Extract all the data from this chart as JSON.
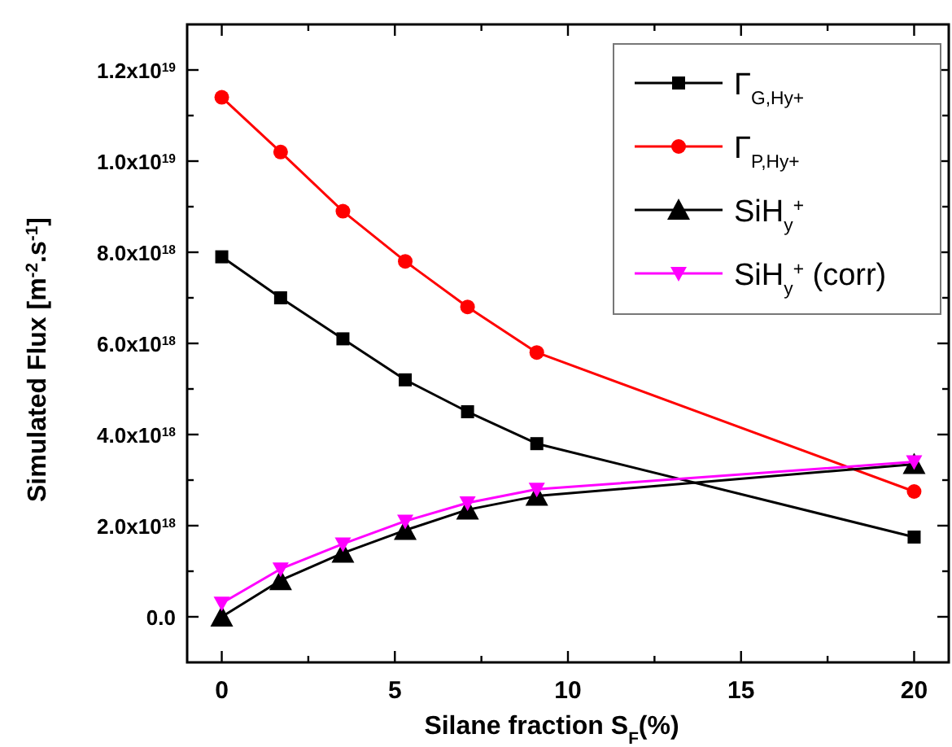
{
  "chart_data": {
    "type": "line",
    "xlabel": "Silane fraction S$_{F}$(%)",
    "ylabel": "Simulated Flux [m$^{-2}$.s$^{-1}$]",
    "x": [
      0,
      1.7,
      3.5,
      5.3,
      7.1,
      9.1,
      20
    ],
    "xlim": [
      -1,
      21
    ],
    "xticks": [
      0,
      {
        "value": 2.5,
        "label": null
      },
      5,
      {
        "value": 7.5,
        "label": null
      },
      10,
      {
        "value": 12.5,
        "label": null
      },
      15,
      {
        "value": 17.5,
        "label": null
      },
      20
    ],
    "ylim": [
      -1e+18,
      1.3e+19
    ],
    "yticks": [
      {
        "value": 0,
        "label": "0.0"
      },
      {
        "value": 1e+18,
        "label": null
      },
      {
        "value": 2e+18,
        "label": "2.0x10$^{18}$"
      },
      {
        "value": 3e+18,
        "label": null
      },
      {
        "value": 4e+18,
        "label": "4.0x10$^{18}$"
      },
      {
        "value": 5e+18,
        "label": null
      },
      {
        "value": 6e+18,
        "label": "6.0x10$^{18}$"
      },
      {
        "value": 7e+18,
        "label": null
      },
      {
        "value": 8e+18,
        "label": "8.0x10$^{18}$"
      },
      {
        "value": 9e+18,
        "label": null
      },
      {
        "value": 1e+19,
        "label": "1.0x10$^{19}$"
      },
      {
        "value": 1.1e+19,
        "label": null
      },
      {
        "value": 1.2e+19,
        "label": "1.2x10$^{19}$"
      }
    ],
    "grid": false,
    "legend": "top right",
    "line_style": "solid",
    "series": [
      {
        "name": "Γ$_{G,Hy+}$",
        "color": "#000000",
        "marker": "square",
        "values": [
          7.9e+18,
          7e+18,
          6.1e+18,
          5.2e+18,
          4.5e+18,
          3.8e+18,
          1.75e+18
        ]
      },
      {
        "name": "Γ$_{P,Hy+}$",
        "color": "#ff0000",
        "marker": "circle",
        "values": [
          1.14e+19,
          1.02e+19,
          8.9e+18,
          7.8e+18,
          6.8e+18,
          5.8e+18,
          2.75e+18
        ]
      },
      {
        "name": "SiH$_{y}$$^{+}$",
        "color": "#000000",
        "marker": "triangle",
        "values": [
          0,
          8e+17,
          1.4e+18,
          1.9e+18,
          2.35e+18,
          2.65e+18,
          3.35e+18
        ]
      },
      {
        "name": "SiH$_{y}$$^{+}$ (corr)",
        "color": "#ff00ff",
        "marker": "triangle-down",
        "values": [
          3e+17,
          1.05e+18,
          1.6e+18,
          2.1e+18,
          2.5e+18,
          2.8e+18,
          3.4e+18
        ]
      }
    ]
  }
}
